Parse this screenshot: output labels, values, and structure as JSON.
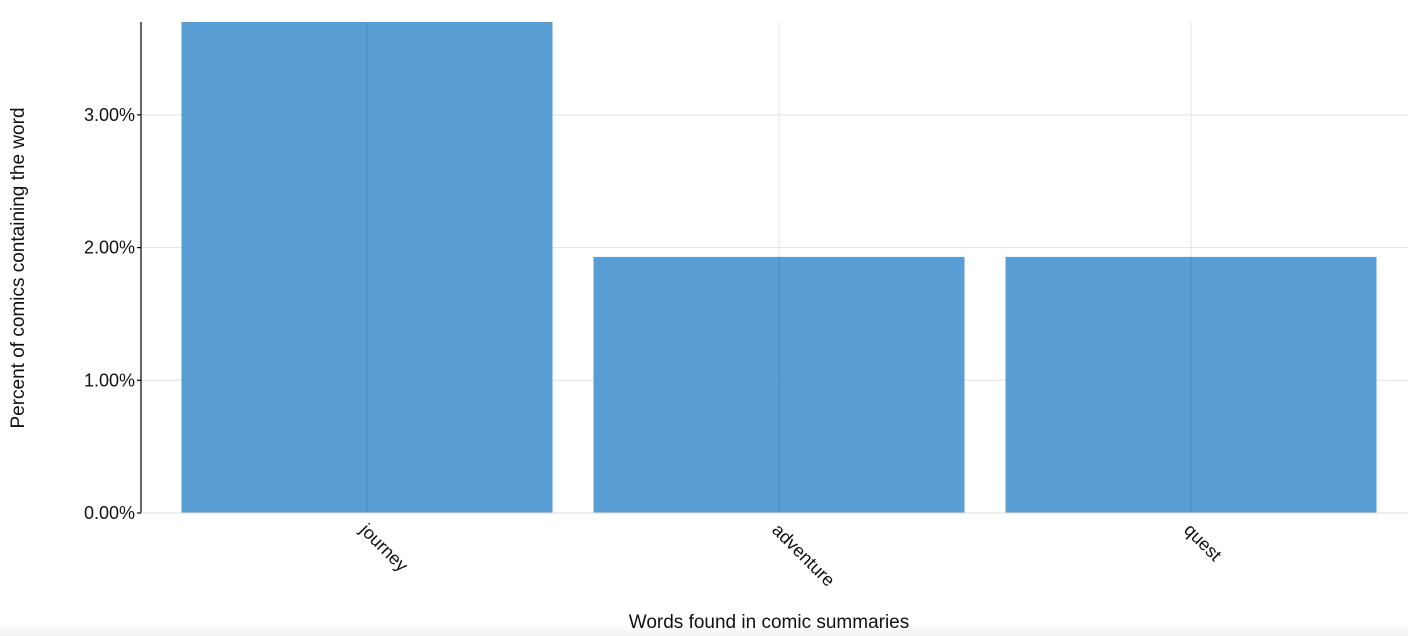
{
  "chart_data": {
    "type": "bar",
    "categories": [
      "journey",
      "adventure",
      "quest"
    ],
    "values": [
      3.7,
      1.93,
      1.93
    ],
    "value_unit": "%",
    "xlabel": "Words found in comic summaries",
    "ylabel": "Percent of comics containing the word",
    "yticks": [
      "0.00%",
      "1.00%",
      "2.00%",
      "3.00%"
    ],
    "ytick_values": [
      0,
      1,
      2,
      3
    ],
    "ylim": [
      0,
      3.7
    ],
    "grid": true,
    "bar_color": "#4a96d1",
    "gridline_color": "#e3e3e3",
    "axis_color": "#000000"
  }
}
